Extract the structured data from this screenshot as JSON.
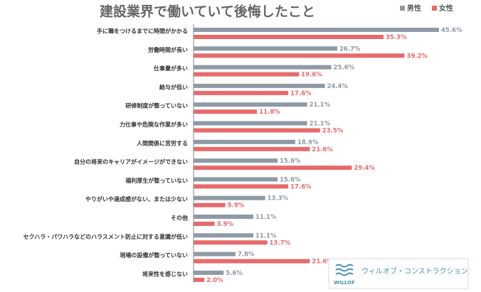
{
  "chart_data": {
    "type": "hbar",
    "title": "建設業界で働いていて後悔したこと",
    "categories": [
      "手に職をつけるまでに時間がかかる",
      "労働時間が長い",
      "仕事量が多い",
      "給与が低い",
      "研修制度が整っていない",
      "力仕事や危険な作業が多い",
      "人間関係に苦労する",
      "自分の将来のキャリアがイメージができない",
      "福利厚生が整っていない",
      "やりがいや達成感がない、または少ない",
      "その他",
      "セクハラ・パワハラなどのハラスメント防止に対する意識が低い",
      "現場の設備が整っていない",
      "将来性を感じない"
    ],
    "series": [
      {
        "name": "男性",
        "color": "#8e9aa5",
        "values": [
          45.6,
          26.7,
          25.6,
          24.4,
          21.1,
          21.1,
          18.9,
          15.6,
          15.6,
          13.3,
          11.1,
          11.1,
          7.8,
          5.6
        ],
        "value_labels": [
          "45.6%",
          "26.7%",
          "25.6%",
          "24.4%",
          "21.1%",
          "21.1%",
          "18.9%",
          "15.6%",
          "15.6%",
          "13.3%",
          "11.1%",
          "11.1%",
          "7.8%",
          "5.6%"
        ]
      },
      {
        "name": "女性",
        "color": "#e76a6b",
        "values": [
          35.3,
          39.2,
          19.6,
          17.6,
          11.8,
          23.5,
          21.6,
          29.4,
          17.6,
          5.9,
          3.9,
          13.7,
          21.6,
          2.0
        ],
        "value_labels": [
          "35.3%",
          "39.2%",
          "19.6%",
          "17.6%",
          "11.8%",
          "23.5%",
          "21.6%",
          "29.4%",
          "17.6%",
          "5.9%",
          "3.9%",
          "13.7%",
          "21.6%",
          "2.0%"
        ]
      }
    ],
    "xlim": [
      0,
      46
    ]
  },
  "logo": {
    "brand": "WILLOF",
    "text": "ウィルオブ・コンストラクション"
  }
}
